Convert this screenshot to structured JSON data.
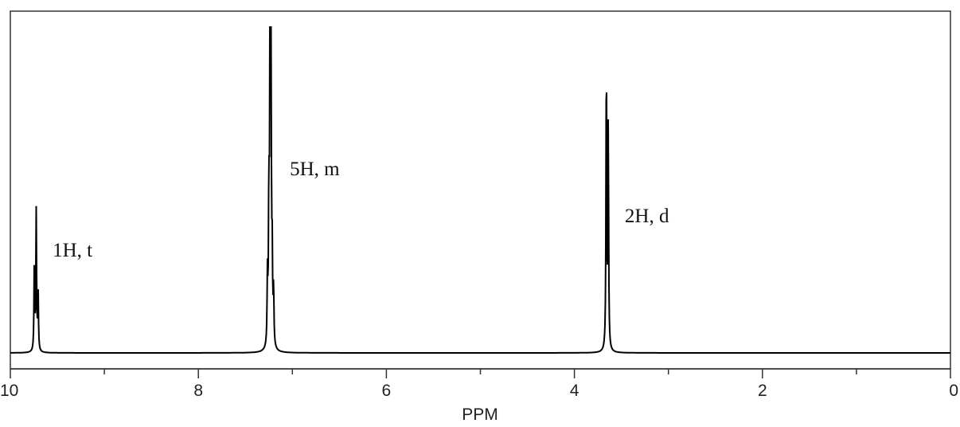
{
  "chart_data": {
    "type": "line",
    "title": "",
    "xlabel": "PPM",
    "ylabel": "",
    "x_reversed": true,
    "xlim": [
      10,
      0
    ],
    "ylim": [
      0,
      1.0
    ],
    "x_ticks": [
      {
        "value": 10,
        "label": "10"
      },
      {
        "value": 8,
        "label": "8"
      },
      {
        "value": 6,
        "label": "6"
      },
      {
        "value": 4,
        "label": "4"
      },
      {
        "value": 2,
        "label": "2"
      },
      {
        "value": 0,
        "label": "0"
      }
    ],
    "minor_ticks": [
      9,
      7,
      5,
      3,
      1
    ],
    "grid": false,
    "line_color": "#000000",
    "series": [
      {
        "peaks": [
          {
            "ppm": 9.72,
            "height": 0.43,
            "label": "1H, t"
          },
          {
            "ppm": 7.23,
            "height": 1.0,
            "label": "5H, m"
          },
          {
            "ppm": 3.65,
            "height": 0.92,
            "label": "2H, d"
          }
        ],
        "lines": [
          {
            "ppm": 9.745,
            "height": 0.26
          },
          {
            "ppm": 9.725,
            "height": 0.43
          },
          {
            "ppm": 9.705,
            "height": 0.19
          },
          {
            "ppm": 7.265,
            "height": 0.21
          },
          {
            "ppm": 7.25,
            "height": 0.45
          },
          {
            "ppm": 7.238,
            "height": 0.95
          },
          {
            "ppm": 7.228,
            "height": 1.0
          },
          {
            "ppm": 7.215,
            "height": 0.26
          },
          {
            "ppm": 7.2,
            "height": 0.17
          },
          {
            "ppm": 3.66,
            "height": 0.92
          },
          {
            "ppm": 3.64,
            "height": 0.7
          }
        ]
      }
    ]
  }
}
